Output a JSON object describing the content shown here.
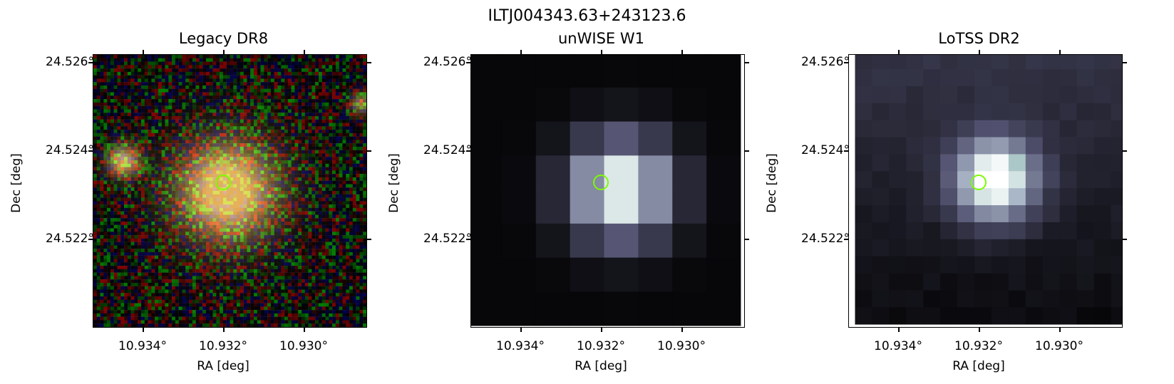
{
  "suptitle": "ILTJ004343.63+243123.6",
  "panels": [
    {
      "title": "Legacy DR8",
      "xlabel": "RA [deg]",
      "ylabel": "Dec [deg]",
      "xticks": [
        "10.934°",
        "10.932°",
        "10.930°"
      ],
      "yticks": [
        "24.526°",
        "24.524°",
        "24.522°"
      ],
      "image": "rgb optical cutout"
    },
    {
      "title": "unWISE W1",
      "xlabel": "RA [deg]",
      "ylabel": "Dec [deg]",
      "xticks": [
        "10.934°",
        "10.932°",
        "10.930°"
      ],
      "yticks": [
        "24.526°",
        "24.524°",
        "24.522°"
      ],
      "image": "bone-colormap infrared cutout"
    },
    {
      "title": "LoTSS DR2",
      "xlabel": "RA [deg]",
      "ylabel": "Dec [deg]",
      "xticks": [
        "10.934°",
        "10.932°",
        "10.930°"
      ],
      "yticks": [
        "24.526°",
        "24.524°",
        "24.522°"
      ],
      "image": "bone-colormap radio cutout"
    }
  ],
  "colors": {
    "marker": "#7cfc00"
  },
  "marker": {
    "ra": 10.932,
    "dec": 24.5233
  }
}
